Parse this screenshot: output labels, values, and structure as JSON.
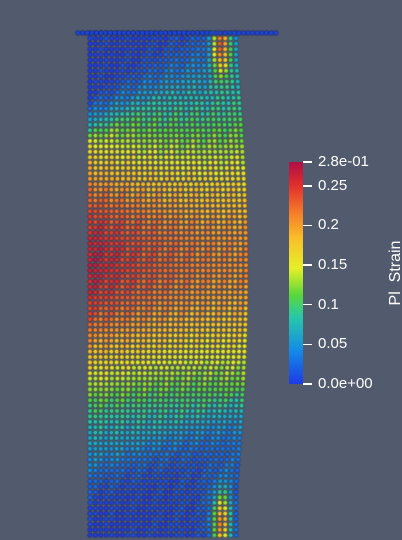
{
  "viewer": {
    "background": "#525a6e"
  },
  "colorbar": {
    "title": "Pl_Strain",
    "range": [
      0.0,
      0.28
    ],
    "colormap": "jet",
    "labels": [
      {
        "text": "2.8e-01",
        "value": 0.28
      },
      {
        "text": "0.25",
        "value": 0.25
      },
      {
        "text": "0.2",
        "value": 0.2
      },
      {
        "text": "0.15",
        "value": 0.15
      },
      {
        "text": "0.1",
        "value": 0.1
      },
      {
        "text": "0.05",
        "value": 0.05
      },
      {
        "text": "0.0e+00",
        "value": 0.0
      }
    ]
  }
}
